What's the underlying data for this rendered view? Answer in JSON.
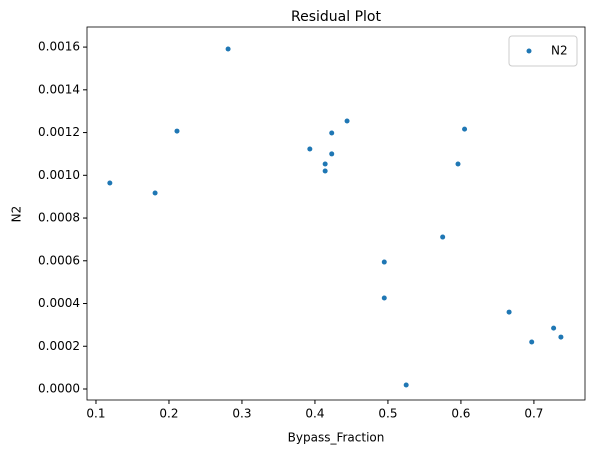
{
  "chart_data": {
    "type": "scatter",
    "title": "Residual Plot",
    "x_label": "Bypass_Fraction",
    "y_label": "N2",
    "series": [
      {
        "name": "N2",
        "color": "#1f77b4",
        "x": [
          0.119,
          0.181,
          0.211,
          0.281,
          0.393,
          0.414,
          0.414,
          0.423,
          0.423,
          0.444,
          0.495,
          0.495,
          0.525,
          0.575,
          0.596,
          0.605,
          0.666,
          0.697,
          0.727,
          0.737
        ],
        "values": [
          0.000964,
          0.000917,
          0.001207,
          0.001591,
          0.001123,
          0.001053,
          0.00102,
          0.001198,
          0.0011,
          0.001254,
          0.000594,
          0.000426,
          1.87e-05,
          0.000711,
          0.001053,
          0.001216,
          0.00036,
          0.00022,
          0.000285,
          0.000243
        ]
      }
    ],
    "xlim": [
      0.0877,
      0.77
    ],
    "ylim": [
      -5.15e-05,
      0.001694
    ],
    "xticks": [
      0.1,
      0.2,
      0.3,
      0.4,
      0.5,
      0.6,
      0.7
    ],
    "yticks": [
      {
        "value": 0,
        "label": "0.0000"
      },
      {
        "value": 0.0002,
        "label": "0.0002"
      },
      {
        "value": 0.0004,
        "label": "0.0004"
      },
      {
        "value": 0.0006,
        "label": "0.0006"
      },
      {
        "value": 0.0008,
        "label": "0.0008"
      },
      {
        "value": 0.001,
        "label": "0.0010"
      },
      {
        "value": 0.0012,
        "label": "0.0012"
      },
      {
        "value": 0.0014,
        "label": "0.0014"
      },
      {
        "value": 0.0016,
        "label": "0.0016"
      }
    ],
    "legend": "upper right"
  }
}
